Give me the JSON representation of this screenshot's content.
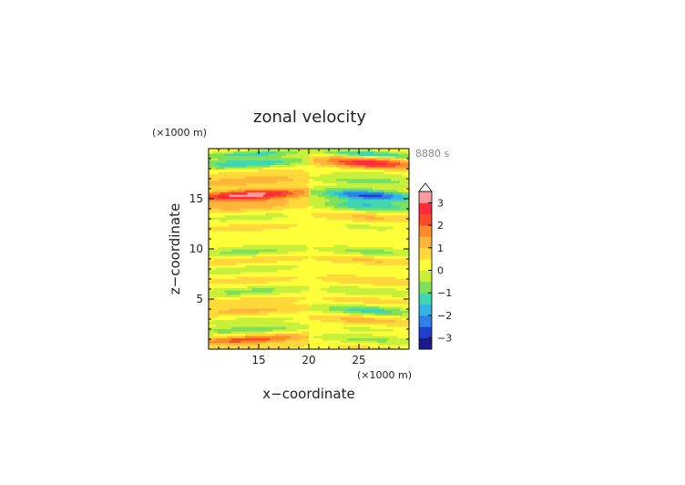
{
  "chart_data": {
    "type": "heatmap",
    "title": "zonal velocity",
    "xlabel": "x−coordinate",
    "ylabel": "z−coordinate",
    "x_unit": "(×1000 m)",
    "y_unit": "(×1000 m)",
    "time_label": "8880 s",
    "xlim": [
      10,
      30
    ],
    "ylim": [
      0,
      20
    ],
    "x_ticks": [
      15,
      20,
      25
    ],
    "y_ticks": [
      5,
      10,
      15
    ],
    "colorbar": {
      "levels": [
        -3.5,
        -3,
        -2.5,
        -2,
        -1.5,
        -1,
        -0.5,
        0,
        0.5,
        1,
        1.5,
        2,
        2.5,
        3,
        3.5
      ],
      "tick_values": [
        3,
        2,
        1,
        0,
        -1,
        -2,
        -3
      ],
      "tick_labels": [
        "3",
        "2",
        "1",
        "0",
        "−1",
        "−2",
        "−3"
      ],
      "colors": [
        "#1a1a8c",
        "#1f3fd0",
        "#2f7fe8",
        "#35b3e6",
        "#3fd6b0",
        "#7fe05a",
        "#c8f03a",
        "#ffff3a",
        "#ffd83a",
        "#ffb43a",
        "#ff8a2a",
        "#ff4a2a",
        "#ff2a3a",
        "#ff9aa0"
      ]
    },
    "bands": [
      {
        "z": 19.5,
        "hw": 0.3,
        "left": -1.5,
        "right": -2.0
      },
      {
        "z": 18.6,
        "hw": 0.55,
        "left": -1.8,
        "right": 2.5
      },
      {
        "z": 17.6,
        "hw": 0.45,
        "left": 0.5,
        "right": -0.5
      },
      {
        "z": 16.8,
        "hw": 0.4,
        "left": 1.2,
        "right": -1.2
      },
      {
        "z": 15.4,
        "hw": 0.55,
        "left": 3.0,
        "right": -3.0
      },
      {
        "z": 14.3,
        "hw": 0.5,
        "left": 1.0,
        "right": -1.8
      },
      {
        "z": 13.2,
        "hw": 0.45,
        "left": -0.5,
        "right": 0.8
      },
      {
        "z": 12.2,
        "hw": 0.45,
        "left": 0.4,
        "right": -0.4
      },
      {
        "z": 10.9,
        "hw": 0.5,
        "left": -0.3,
        "right": 0.2
      },
      {
        "z": 9.8,
        "hw": 0.45,
        "left": -1.0,
        "right": -1.0
      },
      {
        "z": 8.9,
        "hw": 0.4,
        "left": 0.6,
        "right": 0.8
      },
      {
        "z": 8.0,
        "hw": 0.45,
        "left": -0.6,
        "right": -0.3
      },
      {
        "z": 6.9,
        "hw": 0.45,
        "left": 0.4,
        "right": 0.6
      },
      {
        "z": 5.8,
        "hw": 0.45,
        "left": -1.0,
        "right": -0.8
      },
      {
        "z": 4.9,
        "hw": 0.4,
        "left": 0.5,
        "right": 0.5
      },
      {
        "z": 3.9,
        "hw": 0.45,
        "left": 0.9,
        "right": -1.6
      },
      {
        "z": 2.9,
        "hw": 0.4,
        "left": -0.5,
        "right": 1.0
      },
      {
        "z": 2.0,
        "hw": 0.4,
        "left": -1.2,
        "right": -0.4
      },
      {
        "z": 1.0,
        "hw": 0.4,
        "left": 2.0,
        "right": -1.0
      },
      {
        "z": 0.2,
        "hw": 0.4,
        "left": 0.5,
        "right": 0.3
      }
    ]
  }
}
